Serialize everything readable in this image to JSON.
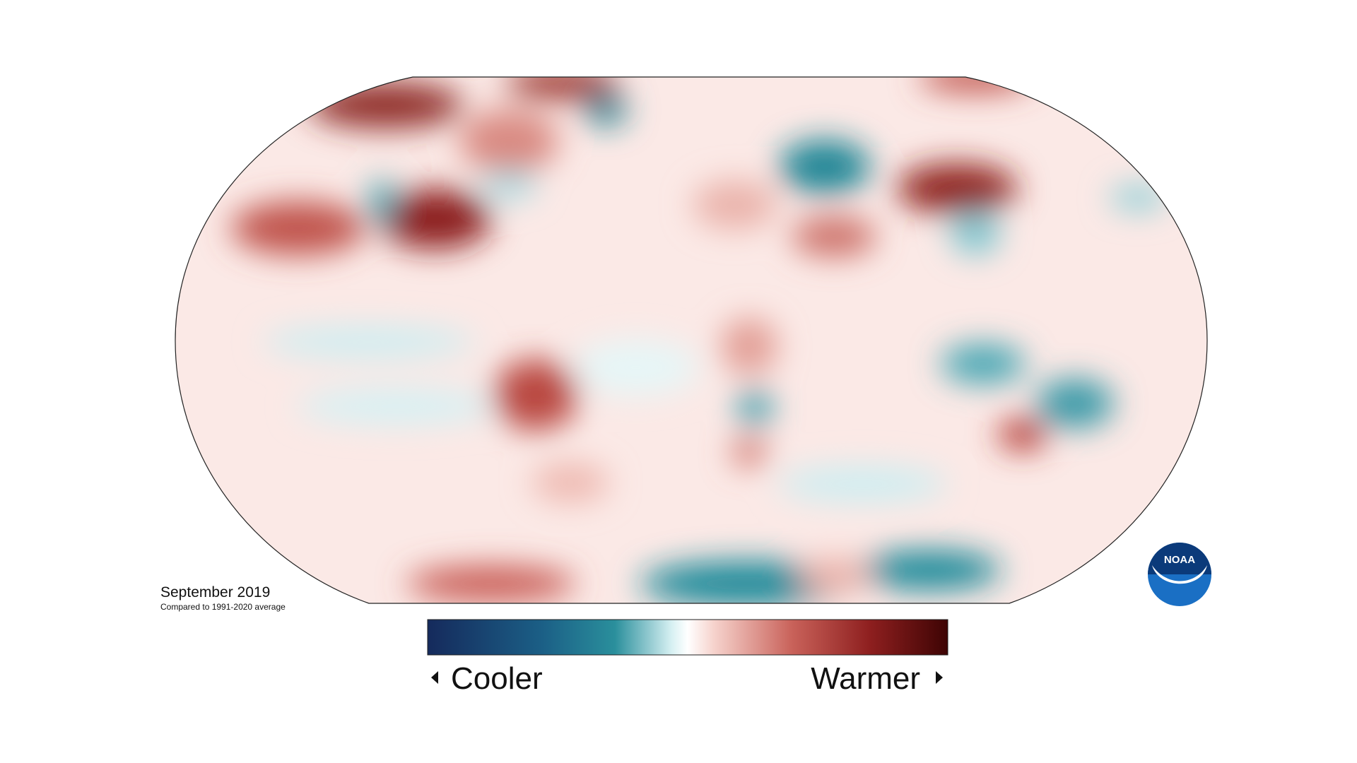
{
  "map": {
    "title": "September 2019",
    "subtitle": "Compared to 1991-2020 average"
  },
  "legend": {
    "low_label": "Cooler",
    "high_label": "Warmer"
  },
  "logo": {
    "text": "NOAA"
  }
}
